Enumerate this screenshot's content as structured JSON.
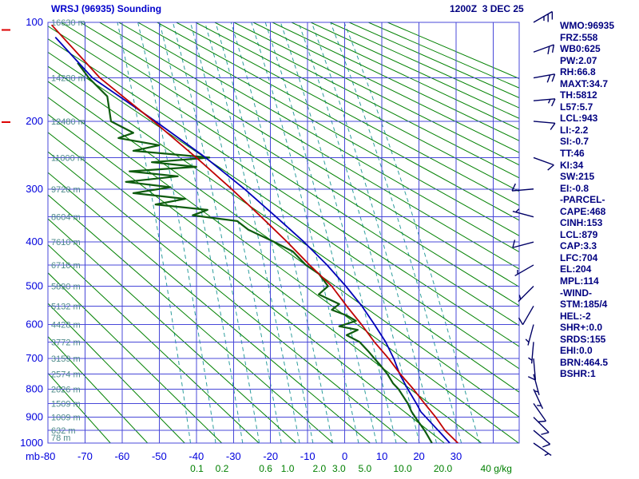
{
  "header": {
    "title": "WRSJ (96935) Sounding",
    "datetime": "1200Z  3 DEC 25"
  },
  "axes": {
    "pressure_unit": "mb",
    "mixing_unit": "g/kg",
    "pressure_ticks": [
      100,
      200,
      300,
      400,
      500,
      600,
      700,
      800,
      900,
      1000
    ],
    "pressure_gridlines": [
      100,
      150,
      200,
      250,
      300,
      350,
      400,
      450,
      500,
      550,
      600,
      650,
      700,
      750,
      800,
      850,
      900,
      950,
      1000
    ],
    "temp_ticks": [
      -80,
      -70,
      -60,
      -50,
      -40,
      -30,
      -20,
      -10,
      0,
      10,
      20,
      30
    ]
  },
  "heights": [
    {
      "p": 100,
      "label": "16630 m"
    },
    {
      "p": 150,
      "label": "14280 m"
    },
    {
      "p": 200,
      "label": "12480 m"
    },
    {
      "p": 250,
      "label": "11000 m"
    },
    {
      "p": 300,
      "label": "9720 m"
    },
    {
      "p": 350,
      "label": "8604 m"
    },
    {
      "p": 400,
      "label": "7610 m"
    },
    {
      "p": 450,
      "label": "6710 m"
    },
    {
      "p": 500,
      "label": "5890 m"
    },
    {
      "p": 550,
      "label": "5132 m"
    },
    {
      "p": 600,
      "label": "4428 m"
    },
    {
      "p": 650,
      "label": "3772 m"
    },
    {
      "p": 700,
      "label": "3159 m"
    },
    {
      "p": 750,
      "label": "2574 m"
    },
    {
      "p": 800,
      "label": "2026 m"
    },
    {
      "p": 850,
      "label": "1509 m"
    },
    {
      "p": 900,
      "label": "1009 m"
    },
    {
      "p": 950,
      "label": "632 m"
    },
    {
      "p": 1000,
      "label": "78 m"
    }
  ],
  "stats": [
    "WMO:96935",
    "FRZ:558",
    "WB0:625",
    "PW:2.07",
    "RH:66.8",
    "MAXT:34.7",
    "TH:5812",
    "L57:5.7",
    "LCL:943",
    "LI:-2.2",
    "SI:-0.7",
    "TT:46",
    "KI:34",
    "SW:215",
    "EI:-0.8",
    "-PARCEL-",
    "CAPE:468",
    "CINH:153",
    "LCL:879",
    "CAP:3.3",
    "LFC:704",
    "EL:204",
    "MPL:114",
    "-WIND-",
    "STM:185/4",
    "HEL:-2",
    "SHR+:0.0",
    "SRDS:155",
    "EHI:0.0",
    "BRN:464.5",
    "BSHR:1"
  ],
  "colors": {
    "grid_blue": "#4848d8",
    "adiabat_green": "#008000",
    "mixing_teal": "#2d9d9d",
    "temp_red": "#c00000",
    "parcel_blue": "#0000b8",
    "dewpoint_green": "#0e5c0e",
    "label_blue": "#0000dd",
    "height_label": "#4d8a8a",
    "green_label": "#008000",
    "stats_navy": "#000080",
    "wind_navy": "#000066",
    "marker_red": "#dd0000"
  },
  "chart_data": {
    "type": "stuve_sounding",
    "title": "WRSJ (96935) Sounding 1200Z 3 DEC 25",
    "pressure_range_mb": [
      100,
      1000
    ],
    "pressure_scale": "p^0.286",
    "temp_range_c": [
      -80,
      47
    ],
    "isotherm_step_c": 10,
    "dry_adiabats_theta_k": {
      "min": 210,
      "max": 550,
      "step": 10
    },
    "mixing_ratio_gkg": [
      0.1,
      0.2,
      0.4,
      0.6,
      1,
      1.5,
      2,
      3,
      5,
      7,
      10,
      15,
      20,
      30,
      40
    ],
    "mixing_ratio_labels": [
      {
        "w": 0.1,
        "label": "0.1"
      },
      {
        "w": 0.2,
        "label": "0.2"
      },
      {
        "w": 0.6,
        "label": "0.6"
      },
      {
        "w": 1,
        "label": "1.0"
      },
      {
        "w": 2,
        "label": "2.0"
      },
      {
        "w": 3,
        "label": "3.0"
      },
      {
        "w": 5,
        "label": "5.0"
      },
      {
        "w": 10,
        "label": "10.0"
      },
      {
        "w": 20,
        "label": "20.0"
      },
      {
        "w": 40,
        "label": "40"
      }
    ],
    "left_markers_p": [
      106,
      201
    ],
    "temperature_trace": [
      [
        102,
        -79
      ],
      [
        150,
        -66
      ],
      [
        200,
        -51.5
      ],
      [
        250,
        -40
      ],
      [
        300,
        -30.5
      ],
      [
        350,
        -22.5
      ],
      [
        400,
        -15.5
      ],
      [
        450,
        -9.5
      ],
      [
        500,
        -3.5
      ],
      [
        550,
        0.5
      ],
      [
        600,
        4.5
      ],
      [
        650,
        8
      ],
      [
        700,
        11.8
      ],
      [
        750,
        15
      ],
      [
        800,
        18.5
      ],
      [
        850,
        21.5
      ],
      [
        900,
        24.5
      ],
      [
        950,
        27
      ],
      [
        1000,
        30.5
      ]
    ],
    "parcel_trace": [
      [
        112,
        -78
      ],
      [
        150,
        -68
      ],
      [
        200,
        -51
      ],
      [
        250,
        -37.5
      ],
      [
        300,
        -27
      ],
      [
        350,
        -18.5
      ],
      [
        400,
        -11
      ],
      [
        450,
        -4.8
      ],
      [
        500,
        0.3
      ],
      [
        550,
        4.6
      ],
      [
        600,
        8
      ],
      [
        650,
        11
      ],
      [
        700,
        13.2
      ],
      [
        750,
        14.8
      ],
      [
        800,
        17
      ],
      [
        850,
        19.3
      ],
      [
        880,
        20.5
      ],
      [
        920,
        23.2
      ],
      [
        960,
        25.8
      ],
      [
        1000,
        28.3
      ]
    ],
    "dewpoint_trace": [
      [
        135,
        -72
      ],
      [
        150,
        -69
      ],
      [
        170,
        -64
      ],
      [
        200,
        -63
      ],
      [
        215,
        -57
      ],
      [
        222,
        -61
      ],
      [
        232,
        -50
      ],
      [
        240,
        -57
      ],
      [
        250,
        -36.5
      ],
      [
        257,
        -52
      ],
      [
        264,
        -40
      ],
      [
        271,
        -58
      ],
      [
        279,
        -45
      ],
      [
        288,
        -59
      ],
      [
        297,
        -47
      ],
      [
        307,
        -57
      ],
      [
        317,
        -43
      ],
      [
        327,
        -51
      ],
      [
        337,
        -37
      ],
      [
        347,
        -41
      ],
      [
        358,
        -29
      ],
      [
        375,
        -26
      ],
      [
        400,
        -19
      ],
      [
        420,
        -14
      ],
      [
        450,
        -10.5
      ],
      [
        470,
        -7
      ],
      [
        500,
        -4.5
      ],
      [
        520,
        -7
      ],
      [
        545,
        -1.5
      ],
      [
        560,
        -3.5
      ],
      [
        575,
        0.5
      ],
      [
        590,
        3
      ],
      [
        605,
        -1.5
      ],
      [
        615,
        3.5
      ],
      [
        630,
        0.5
      ],
      [
        650,
        4
      ],
      [
        680,
        6.5
      ],
      [
        700,
        8
      ],
      [
        720,
        9.5
      ],
      [
        750,
        11.5
      ],
      [
        780,
        13
      ],
      [
        800,
        14.5
      ],
      [
        830,
        16
      ],
      [
        850,
        17
      ],
      [
        880,
        18
      ],
      [
        900,
        19
      ],
      [
        920,
        20
      ],
      [
        950,
        21.5
      ],
      [
        975,
        22.5
      ],
      [
        1000,
        23.5
      ]
    ],
    "winds": [
      {
        "p": 100,
        "dir": 60,
        "spd": 25
      },
      {
        "p": 125,
        "dir": 70,
        "spd": 20
      },
      {
        "p": 150,
        "dir": 80,
        "spd": 20
      },
      {
        "p": 175,
        "dir": 85,
        "spd": 15
      },
      {
        "p": 200,
        "dir": 95,
        "spd": 10
      },
      {
        "p": 250,
        "dir": 110,
        "spd": 10
      },
      {
        "p": 300,
        "dir": 265,
        "spd": 10
      },
      {
        "p": 350,
        "dir": 285,
        "spd": 5
      },
      {
        "p": 400,
        "dir": 255,
        "spd": 10
      },
      {
        "p": 450,
        "dir": 240,
        "spd": 5
      },
      {
        "p": 500,
        "dir": 225,
        "spd": 5
      },
      {
        "p": 550,
        "dir": 210,
        "spd": 10
      },
      {
        "p": 600,
        "dir": 195,
        "spd": 5
      },
      {
        "p": 650,
        "dir": 185,
        "spd": 5
      },
      {
        "p": 700,
        "dir": 175,
        "spd": 10
      },
      {
        "p": 750,
        "dir": 165,
        "spd": 5
      },
      {
        "p": 800,
        "dir": 155,
        "spd": 5
      },
      {
        "p": 850,
        "dir": 145,
        "spd": 10
      },
      {
        "p": 900,
        "dir": 135,
        "spd": 10
      },
      {
        "p": 950,
        "dir": 130,
        "spd": 10
      },
      {
        "p": 1000,
        "dir": 125,
        "spd": 5
      }
    ]
  }
}
